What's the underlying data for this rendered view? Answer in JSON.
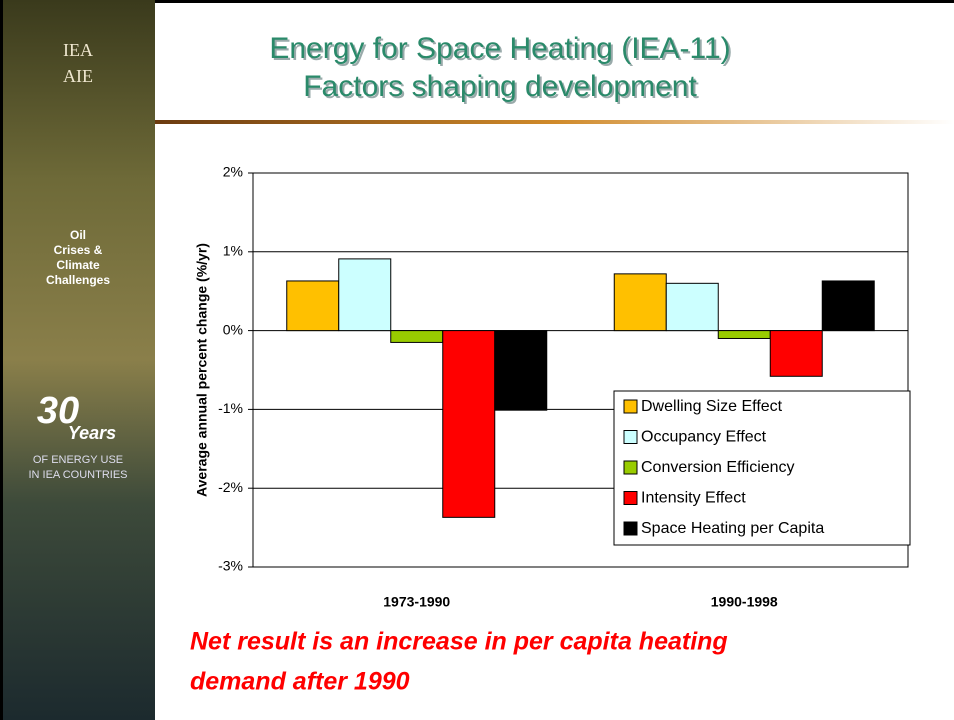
{
  "slide": {
    "title_lines": [
      "Energy for Space Heating (IEA-11)",
      "Factors shaping development"
    ],
    "logo_lines": [
      "IEA",
      "AIE"
    ],
    "sidebar_lines": [
      "Oil",
      "Crises &",
      "Climate",
      "Challenges"
    ],
    "badge_number": "30",
    "badge_word": "Years",
    "badge_lines": [
      "OF ENERGY USE",
      "IN IEA COUNTRIES"
    ],
    "note_lines": [
      "Net result is an increase in per capita heating",
      "demand after 1990"
    ]
  },
  "chart_data": {
    "type": "bar",
    "y_label": "Average annual percent change (%/yr)",
    "categories": [
      "1973-1990",
      "1990-1998"
    ],
    "series": [
      {
        "name": "Dwelling Size Effect",
        "color": "#ffc000",
        "values": [
          0.63,
          0.72
        ]
      },
      {
        "name": "Occupancy Effect",
        "color": "#ccffff",
        "values": [
          0.91,
          0.6
        ]
      },
      {
        "name": "Conversion Efficiency",
        "color": "#99cc00",
        "values": [
          -0.15,
          -0.1
        ]
      },
      {
        "name": "Intensity Effect",
        "color": "#ff0000",
        "values": [
          -2.37,
          -0.58
        ]
      },
      {
        "name": "Space Heating per Capita",
        "color": "#000000",
        "values": [
          -1.01,
          0.63
        ]
      }
    ],
    "ylim": [
      -3,
      2
    ],
    "yticks": [
      {
        "value": -3,
        "label": "-3%"
      },
      {
        "value": -2,
        "label": "-2%"
      },
      {
        "value": -1,
        "label": "-1%"
      },
      {
        "value": 0,
        "label": "0%"
      },
      {
        "value": 1,
        "label": "1%"
      },
      {
        "value": 2,
        "label": "2%"
      }
    ],
    "grid": true,
    "legend": "lower right"
  }
}
